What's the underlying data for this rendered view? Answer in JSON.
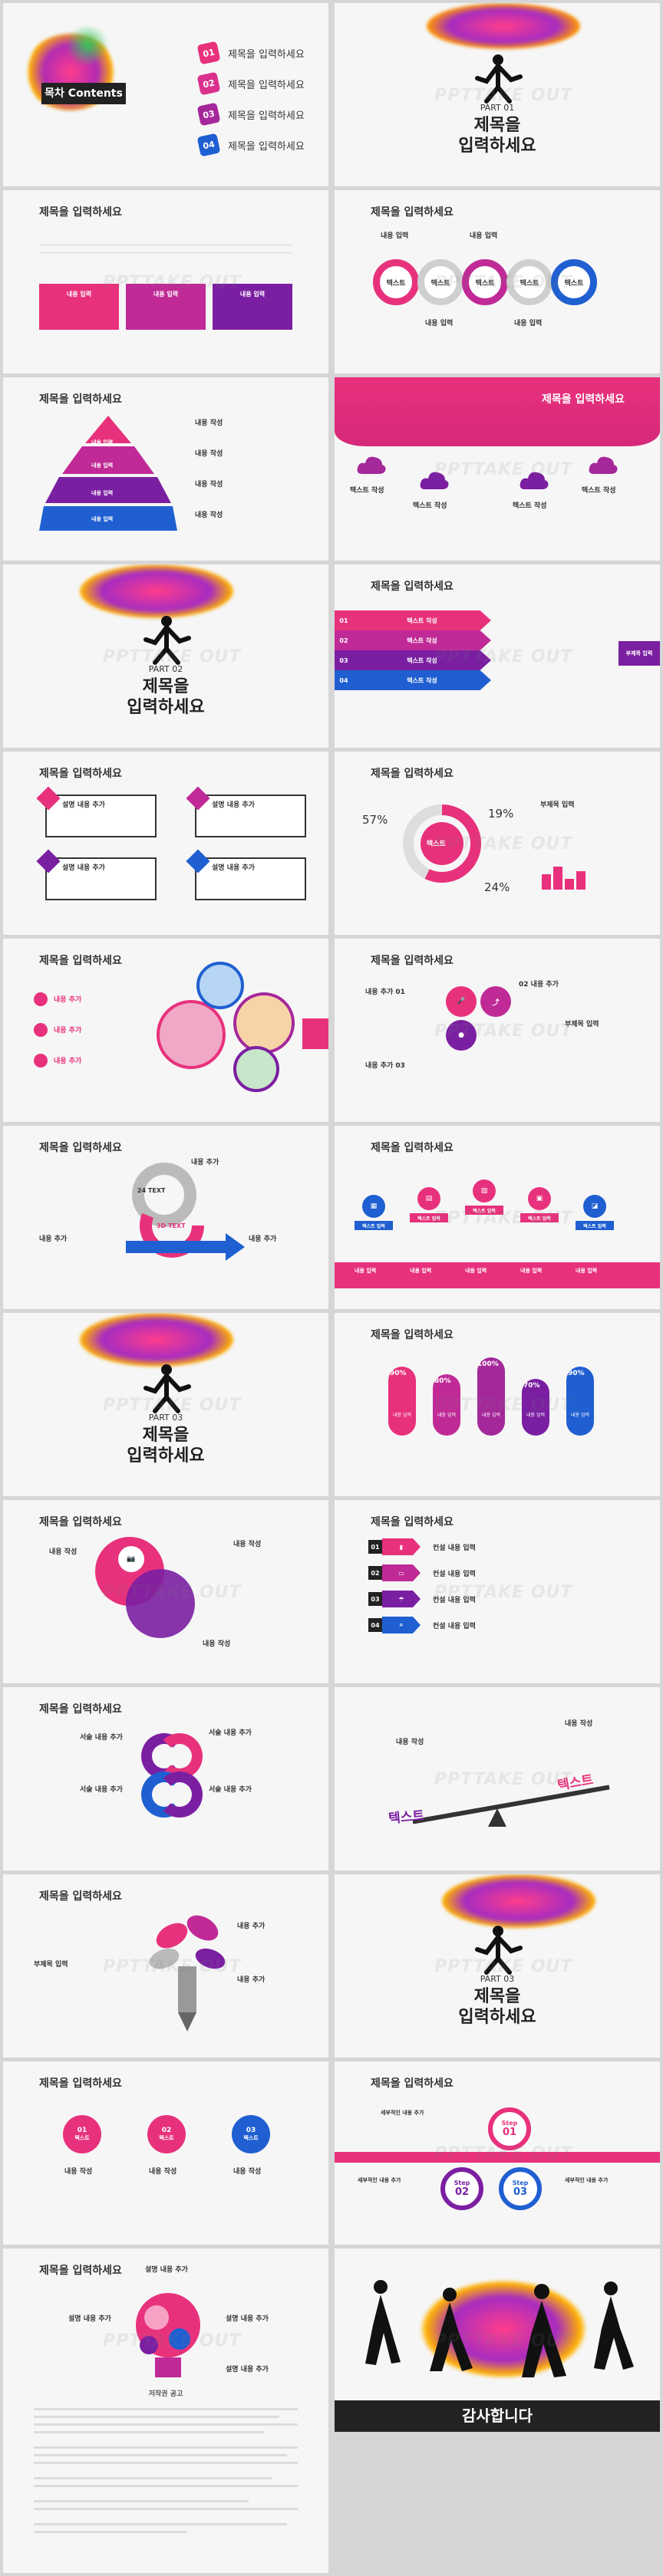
{
  "slide_title": "제목을 입력하세요",
  "watermark": "PPTTAKE OUT",
  "toc": {
    "title": "목차 Contents",
    "items": [
      {
        "num": "01",
        "label": "제목을 입력하세요"
      },
      {
        "num": "02",
        "label": "제목을 입력하세요"
      },
      {
        "num": "03",
        "label": "제목을 입력하세요"
      },
      {
        "num": "04",
        "label": "제목을 입력하세요"
      }
    ]
  },
  "parts": [
    {
      "label": "PART 01",
      "title_line1": "제목을",
      "title_line2": "입력하세요"
    },
    {
      "label": "PART 02",
      "title_line1": "제목을",
      "title_line2": "입력하세요"
    },
    {
      "label": "PART 03",
      "title_line1": "제목을",
      "title_line2": "입력하세요"
    },
    {
      "label": "PART 03",
      "title_line1": "제목을",
      "title_line2": "입력하세요"
    }
  ],
  "slide3": {
    "boxes": [
      "내용 입력",
      "내용 입력",
      "내용 입력"
    ]
  },
  "slide4": {
    "rings": [
      "텍스트",
      "텍스트",
      "텍스트",
      "텍스트",
      "텍스트"
    ],
    "labels": [
      "내용 입력",
      "내용 입력",
      "내용 입력",
      "내용 입력"
    ]
  },
  "slide5": {
    "levels": [
      "내용 입력",
      "내용 입력",
      "내용 입력",
      "내용 입력"
    ],
    "notes": [
      "내용 작성",
      "내용 작성",
      "내용 작성",
      "내용 작성"
    ]
  },
  "slide6": {
    "labels": [
      "텍스트 작성",
      "텍스트 작성",
      "텍스트 작성",
      "텍스트 작성"
    ]
  },
  "slide8": {
    "nums": [
      "01",
      "02",
      "03",
      "04"
    ],
    "bars": [
      "텍스트 작성",
      "텍스트 작성",
      "텍스트 작성",
      "텍스트 작성"
    ],
    "side": "부제목 입력"
  },
  "slide9": {
    "items": [
      "설명 내용 추가",
      "설명 내용 추가",
      "설명 내용 추가",
      "설명 내용 추가"
    ]
  },
  "slide10": {
    "pct": [
      "57%",
      "19%",
      "24%"
    ],
    "center": "텍스트",
    "sub": "부제목 입력"
  },
  "slide11": {
    "items": [
      "내용 추가",
      "내용 추가",
      "내용 추가"
    ]
  },
  "slide12": {
    "items": [
      "내용 추가 01",
      "02 내용 추가",
      "내용 추가 03"
    ],
    "sub": "부제목 입력"
  },
  "slide13": {
    "items": [
      "내용 추가",
      "내용 추가",
      "내용 추가"
    ],
    "center": "3D TEXT",
    "num": "24 TEXT"
  },
  "slide14": {
    "tags": [
      "텍스트 입력",
      "텍스트 입력",
      "텍스트 입력",
      "텍스트 입력",
      "텍스트 입력"
    ],
    "labels": [
      "내용 입력",
      "내용 입력",
      "내용 입력",
      "내용 입력",
      "내용 입력"
    ]
  },
  "slide16": {
    "pct": [
      "90%",
      "80%",
      "100%",
      "70%",
      "90%"
    ],
    "labels": [
      "내용 입력",
      "내용 입력",
      "내용 입력",
      "내용 입력",
      "내용 입력"
    ]
  },
  "slide17": {
    "items": [
      "내용 작성",
      "내용 작성",
      "내용 작성"
    ]
  },
  "slide18": {
    "nums": [
      "01",
      "02",
      "03",
      "04"
    ],
    "items": [
      "컨설 내용 입력",
      "컨설 내용 입력",
      "컨설 내용 입력",
      "컨설 내용 입력"
    ]
  },
  "slide19": {
    "items": [
      "서술 내용 추가",
      "서술 내용 추가",
      "서술 내용 추가",
      "서술 내용 추가"
    ]
  },
  "slide20": {
    "left": "텍스트",
    "right": "텍스트",
    "notes": [
      "내용 작성",
      "내용 작성"
    ]
  },
  "slide21": {
    "items": [
      "내용 추가",
      "내용 추가"
    ],
    "sub": "부제목 입력"
  },
  "slide23": {
    "circles": [
      {
        "num": "01",
        "label": "텍스트"
      },
      {
        "num": "02",
        "label": "텍스트"
      },
      {
        "num": "03",
        "label": "텍스트"
      }
    ],
    "notes": [
      "내용 작성",
      "내용 작성",
      "내용 작성"
    ]
  },
  "slide24": {
    "steps": [
      {
        "label": "Step",
        "num": "01"
      },
      {
        "label": "Step",
        "num": "02"
      },
      {
        "label": "Step",
        "num": "03"
      }
    ],
    "notes": [
      "세부적인 내용 추가",
      "세부적인 내용 추가",
      "세부적인 내용 추가"
    ]
  },
  "slide25": {
    "items": [
      "설명 내용 추가",
      "설명 내용 추가",
      "설명 내용 추가",
      "설명 내용 추가"
    ]
  },
  "slide26": {
    "thanks": "감사합니다"
  },
  "annotation": {
    "title": "저작권 공고"
  },
  "colors": {
    "pink": "#e8317c",
    "purple": "#7b1fa2",
    "blue": "#1f5fd1",
    "dark": "#222222"
  }
}
